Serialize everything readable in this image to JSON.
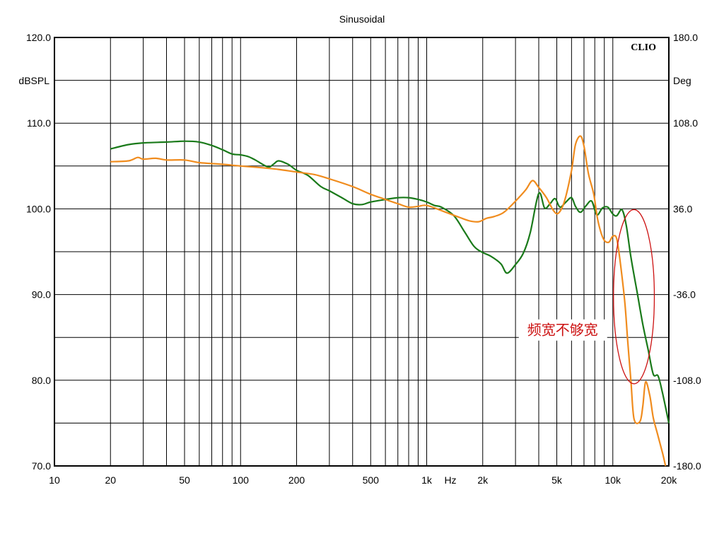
{
  "chart_data": {
    "type": "line",
    "title": "Sinusoidal",
    "brand": "CLIO",
    "xlabel": "Hz",
    "ylabel_left": "dBSPL",
    "ylabel_right": "Deg",
    "x_scale": "log",
    "xlim": [
      10,
      20000
    ],
    "ylim": [
      70,
      120
    ],
    "ylim_right": [
      -180,
      180
    ],
    "grid": true,
    "x_ticks": [
      {
        "value": 10,
        "label": "10"
      },
      {
        "value": 20,
        "label": "20"
      },
      {
        "value": 50,
        "label": "50"
      },
      {
        "value": 100,
        "label": "100"
      },
      {
        "value": 200,
        "label": "200"
      },
      {
        "value": 500,
        "label": "500"
      },
      {
        "value": 1000,
        "label": "1k"
      },
      {
        "value": 2000,
        "label": "2k"
      },
      {
        "value": 5000,
        "label": "5k"
      },
      {
        "value": 10000,
        "label": "10k"
      },
      {
        "value": 20000,
        "label": "20k"
      }
    ],
    "y_ticks_left": [
      {
        "value": 120,
        "label": "120.0"
      },
      {
        "value": 110,
        "label": "110.0"
      },
      {
        "value": 100,
        "label": "100.0"
      },
      {
        "value": 90,
        "label": "90.0"
      },
      {
        "value": 80,
        "label": "80.0"
      },
      {
        "value": 70,
        "label": "70.0"
      }
    ],
    "y_ticks_right": [
      {
        "value": 120,
        "label": "180.0"
      },
      {
        "value": 110,
        "label": "108.0"
      },
      {
        "value": 100,
        "label": "36.0"
      },
      {
        "value": 90,
        "label": "-36.0"
      },
      {
        "value": 80,
        "label": "-108.0"
      },
      {
        "value": 70,
        "label": "-180.0"
      }
    ],
    "series": [
      {
        "color": "#1a7a1a",
        "points": [
          [
            20,
            107
          ],
          [
            25,
            107.5
          ],
          [
            30,
            107.7
          ],
          [
            40,
            107.8
          ],
          [
            50,
            107.9
          ],
          [
            60,
            107.8
          ],
          [
            70,
            107.4
          ],
          [
            80,
            106.9
          ],
          [
            90,
            106.4
          ],
          [
            100,
            106.3
          ],
          [
            110,
            106.1
          ],
          [
            120,
            105.7
          ],
          [
            140,
            104.9
          ],
          [
            150,
            105.2
          ],
          [
            160,
            105.6
          ],
          [
            180,
            105.2
          ],
          [
            200,
            104.5
          ],
          [
            230,
            103.9
          ],
          [
            270,
            102.6
          ],
          [
            300,
            102.1
          ],
          [
            350,
            101.3
          ],
          [
            400,
            100.6
          ],
          [
            450,
            100.5
          ],
          [
            500,
            100.8
          ],
          [
            600,
            101.1
          ],
          [
            700,
            101.3
          ],
          [
            800,
            101.3
          ],
          [
            900,
            101.1
          ],
          [
            1000,
            100.8
          ],
          [
            1100,
            100.4
          ],
          [
            1200,
            100.2
          ],
          [
            1400,
            99.2
          ],
          [
            1600,
            97.3
          ],
          [
            1800,
            95.6
          ],
          [
            2000,
            94.9
          ],
          [
            2200,
            94.5
          ],
          [
            2500,
            93.6
          ],
          [
            2700,
            92.5
          ],
          [
            3000,
            93.5
          ],
          [
            3300,
            94.8
          ],
          [
            3600,
            97.2
          ],
          [
            4000,
            101.8
          ],
          [
            4300,
            100.1
          ],
          [
            4600,
            100.6
          ],
          [
            4900,
            101.2
          ],
          [
            5200,
            100.2
          ],
          [
            5600,
            100.8
          ],
          [
            6000,
            101.3
          ],
          [
            6300,
            100.3
          ],
          [
            6700,
            99.6
          ],
          [
            7200,
            100.4
          ],
          [
            7700,
            100.9
          ],
          [
            8200,
            99.3
          ],
          [
            8800,
            100.1
          ],
          [
            9400,
            100.2
          ],
          [
            10000,
            99.4
          ],
          [
            10500,
            99.2
          ],
          [
            11200,
            99.9
          ],
          [
            11800,
            98.1
          ],
          [
            12500,
            94.4
          ],
          [
            13500,
            90.3
          ],
          [
            14500,
            86.5
          ],
          [
            15500,
            83.5
          ],
          [
            16500,
            80.7
          ],
          [
            17500,
            80.5
          ],
          [
            18500,
            78.5
          ],
          [
            20000,
            75
          ]
        ]
      },
      {
        "color": "#f08c1e",
        "points": [
          [
            20,
            105.5
          ],
          [
            25,
            105.6
          ],
          [
            28,
            106
          ],
          [
            30,
            105.8
          ],
          [
            35,
            105.9
          ],
          [
            40,
            105.7
          ],
          [
            50,
            105.7
          ],
          [
            60,
            105.4
          ],
          [
            80,
            105.2
          ],
          [
            100,
            105
          ],
          [
            130,
            104.8
          ],
          [
            160,
            104.6
          ],
          [
            200,
            104.3
          ],
          [
            250,
            104
          ],
          [
            300,
            103.5
          ],
          [
            400,
            102.6
          ],
          [
            500,
            101.7
          ],
          [
            600,
            101.1
          ],
          [
            700,
            100.6
          ],
          [
            800,
            100.2
          ],
          [
            900,
            100.3
          ],
          [
            1000,
            100.4
          ],
          [
            1200,
            99.8
          ],
          [
            1500,
            99
          ],
          [
            1700,
            98.6
          ],
          [
            1900,
            98.5
          ],
          [
            2100,
            98.9
          ],
          [
            2300,
            99.1
          ],
          [
            2600,
            99.6
          ],
          [
            3000,
            100.9
          ],
          [
            3400,
            102.2
          ],
          [
            3700,
            103.3
          ],
          [
            4000,
            102.5
          ],
          [
            4400,
            101.3
          ],
          [
            4800,
            99.8
          ],
          [
            5100,
            99.5
          ],
          [
            5500,
            100.9
          ],
          [
            6000,
            104.5
          ],
          [
            6300,
            107.5
          ],
          [
            6700,
            108.5
          ],
          [
            7000,
            107.3
          ],
          [
            7400,
            104.1
          ],
          [
            7900,
            101.7
          ],
          [
            8300,
            98.7
          ],
          [
            8900,
            96.5
          ],
          [
            9500,
            96.1
          ],
          [
            10000,
            96.8
          ],
          [
            10500,
            96.5
          ],
          [
            11000,
            93.5
          ],
          [
            11600,
            89.1
          ],
          [
            12000,
            84.8
          ],
          [
            12500,
            80
          ],
          [
            13000,
            75.5
          ],
          [
            14000,
            75.2
          ],
          [
            14500,
            77
          ],
          [
            15000,
            79.8
          ],
          [
            15800,
            78.2
          ],
          [
            16500,
            75.6
          ],
          [
            17500,
            73.5
          ],
          [
            18500,
            71.5
          ],
          [
            19200,
            70
          ]
        ]
      }
    ],
    "annotations": [
      {
        "text": "频宽不够宽",
        "shape": "ellipse",
        "color": "#cc1111",
        "around_x": [
          10000,
          16000
        ],
        "around_y": [
          80,
          99.5
        ]
      }
    ]
  }
}
